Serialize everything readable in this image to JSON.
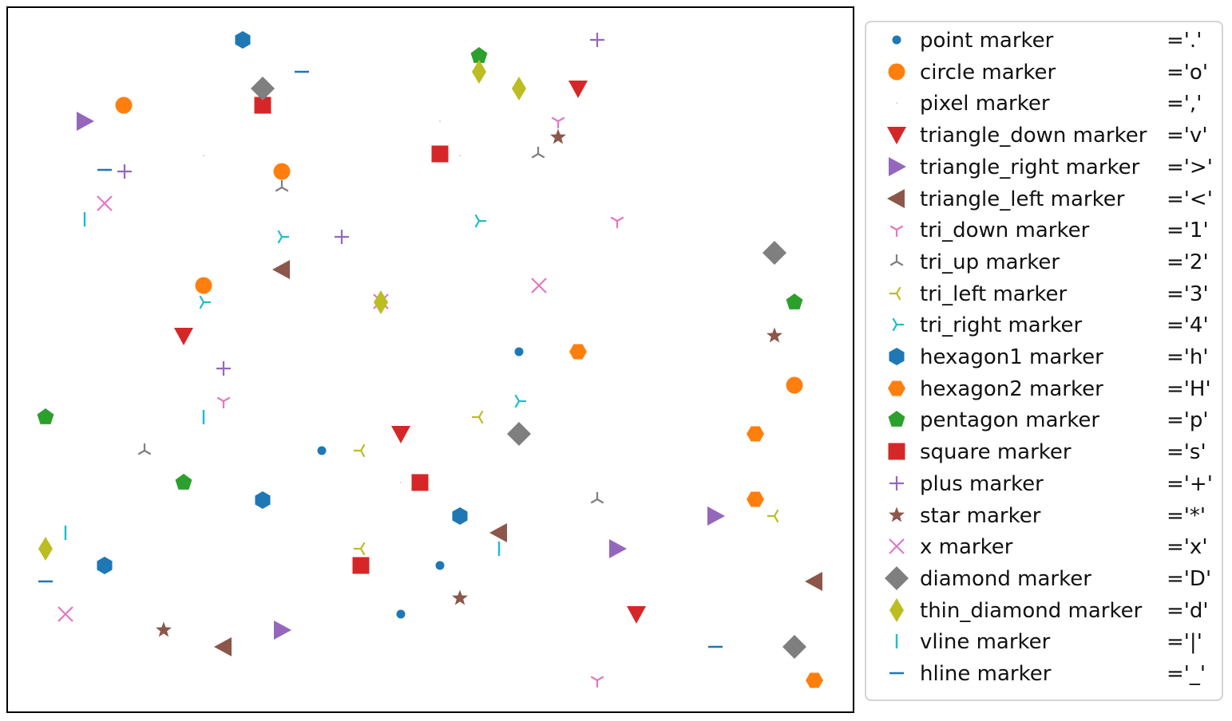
{
  "chart_data": {
    "type": "scatter",
    "title": "",
    "xlabel": "",
    "ylabel": "",
    "axes_visible": false,
    "grid": false,
    "legend_position": "right, outside plot",
    "marker_styles": [
      {
        "key": "point",
        "label": "point marker",
        "code": "='.'",
        "color": "#1f77b4",
        "points": [
          [
            650,
            441
          ],
          [
            403,
            565
          ],
          [
            551,
            709
          ],
          [
            502,
            770
          ]
        ]
      },
      {
        "key": "circle",
        "label": "circle marker",
        "code": "='o'",
        "color": "#ff7f0e",
        "points": [
          [
            155,
            132
          ],
          [
            353,
            215
          ],
          [
            255,
            358
          ],
          [
            995,
            483
          ]
        ]
      },
      {
        "key": "pixel",
        "label": "pixel marker",
        "code": "=','",
        "color": "#2ca02c",
        "points": [
          [
            551,
            152
          ],
          [
            255,
            195
          ],
          [
            576,
            195
          ],
          [
            502,
            605
          ]
        ]
      },
      {
        "key": "triangle_down",
        "label": "triangle_down marker",
        "code": "='v'",
        "color": "#d62728",
        "points": [
          [
            724,
            111
          ],
          [
            230,
            421
          ],
          [
            502,
            544
          ],
          [
            797,
            770
          ]
        ]
      },
      {
        "key": "triangle_right",
        "label": "triangle_right marker",
        "code": "='>'",
        "color": "#9467bd",
        "points": [
          [
            106,
            152
          ],
          [
            896,
            647
          ],
          [
            773,
            688
          ],
          [
            353,
            790
          ]
        ]
      },
      {
        "key": "triangle_left",
        "label": "triangle_left marker",
        "code": "='<'",
        "color": "#8c564b",
        "points": [
          [
            353,
            338
          ],
          [
            625,
            668
          ],
          [
            1020,
            729
          ],
          [
            280,
            811
          ]
        ]
      },
      {
        "key": "tri_down",
        "label": "tri_down marker",
        "code": "='1'",
        "color": "#e377c2",
        "points": [
          [
            699,
            152
          ],
          [
            773,
            277
          ],
          [
            280,
            503
          ],
          [
            748,
            853
          ]
        ]
      },
      {
        "key": "tri_up",
        "label": "tri_up marker",
        "code": "='2'",
        "color": "#7f7f7f",
        "points": [
          [
            674,
            193
          ],
          [
            353,
            235
          ],
          [
            181,
            565
          ],
          [
            748,
            626
          ]
        ]
      },
      {
        "key": "tri_left",
        "label": "tri_left marker",
        "code": "='3'",
        "color": "#bcbd22",
        "points": [
          [
            600,
            523
          ],
          [
            452,
            565
          ],
          [
            970,
            647
          ],
          [
            452,
            688
          ]
        ]
      },
      {
        "key": "tri_right",
        "label": "tri_right marker",
        "code": "='4'",
        "color": "#17becf",
        "points": [
          [
            600,
            277
          ],
          [
            353,
            297
          ],
          [
            255,
            379
          ],
          [
            650,
            503
          ]
        ]
      },
      {
        "key": "hexagon1",
        "label": "hexagon1 marker",
        "code": "='h'",
        "color": "#1f77b4",
        "points": [
          [
            304,
            50
          ],
          [
            329,
            627
          ],
          [
            576,
            647
          ],
          [
            131,
            709
          ]
        ]
      },
      {
        "key": "hexagon2",
        "label": "hexagon2 marker",
        "code": "='H'",
        "color": "#ff7f0e",
        "points": [
          [
            724,
            441
          ],
          [
            946,
            544
          ],
          [
            946,
            626
          ],
          [
            1020,
            853
          ]
        ]
      },
      {
        "key": "pentagon",
        "label": "pentagon marker",
        "code": "='p'",
        "color": "#2ca02c",
        "points": [
          [
            600,
            70
          ],
          [
            995,
            379
          ],
          [
            57,
            523
          ],
          [
            230,
            605
          ]
        ]
      },
      {
        "key": "square",
        "label": "square marker",
        "code": "='s'",
        "color": "#d62728",
        "points": [
          [
            329,
            132
          ],
          [
            551,
            193
          ],
          [
            526,
            605
          ],
          [
            452,
            709
          ]
        ]
      },
      {
        "key": "plus",
        "label": "plus marker",
        "code": "='+'",
        "color": "#9467bd",
        "points": [
          [
            748,
            50
          ],
          [
            156,
            215
          ],
          [
            428,
            297
          ],
          [
            280,
            462
          ]
        ]
      },
      {
        "key": "star",
        "label": "star marker",
        "code": "='*'",
        "color": "#8c564b",
        "points": [
          [
            699,
            172
          ],
          [
            970,
            421
          ],
          [
            576,
            750
          ],
          [
            205,
            790
          ]
        ]
      },
      {
        "key": "x",
        "label": "x marker",
        "code": "='x'",
        "color": "#e377c2",
        "points": [
          [
            131,
            255
          ],
          [
            675,
            358
          ],
          [
            477,
            378
          ],
          [
            82,
            770
          ]
        ]
      },
      {
        "key": "diamond",
        "label": "diamond marker",
        "code": "='D'",
        "color": "#7f7f7f",
        "points": [
          [
            329,
            111
          ],
          [
            970,
            317
          ],
          [
            650,
            544
          ],
          [
            995,
            811
          ]
        ]
      },
      {
        "key": "thin_diamond",
        "label": "thin_diamond marker",
        "code": "='d'",
        "color": "#bcbd22",
        "points": [
          [
            600,
            90
          ],
          [
            650,
            111
          ],
          [
            477,
            379
          ],
          [
            57,
            688
          ]
        ]
      },
      {
        "key": "vline",
        "label": "vline marker",
        "code": "='|'",
        "color": "#17becf",
        "points": [
          [
            106,
            275
          ],
          [
            255,
            523
          ],
          [
            82,
            668
          ],
          [
            625,
            688
          ]
        ]
      },
      {
        "key": "hline",
        "label": "hline marker",
        "code": "='_'",
        "color": "#1f77b4",
        "points": [
          [
            378,
            90
          ],
          [
            131,
            213
          ],
          [
            57,
            729
          ],
          [
            896,
            811
          ]
        ]
      }
    ]
  }
}
